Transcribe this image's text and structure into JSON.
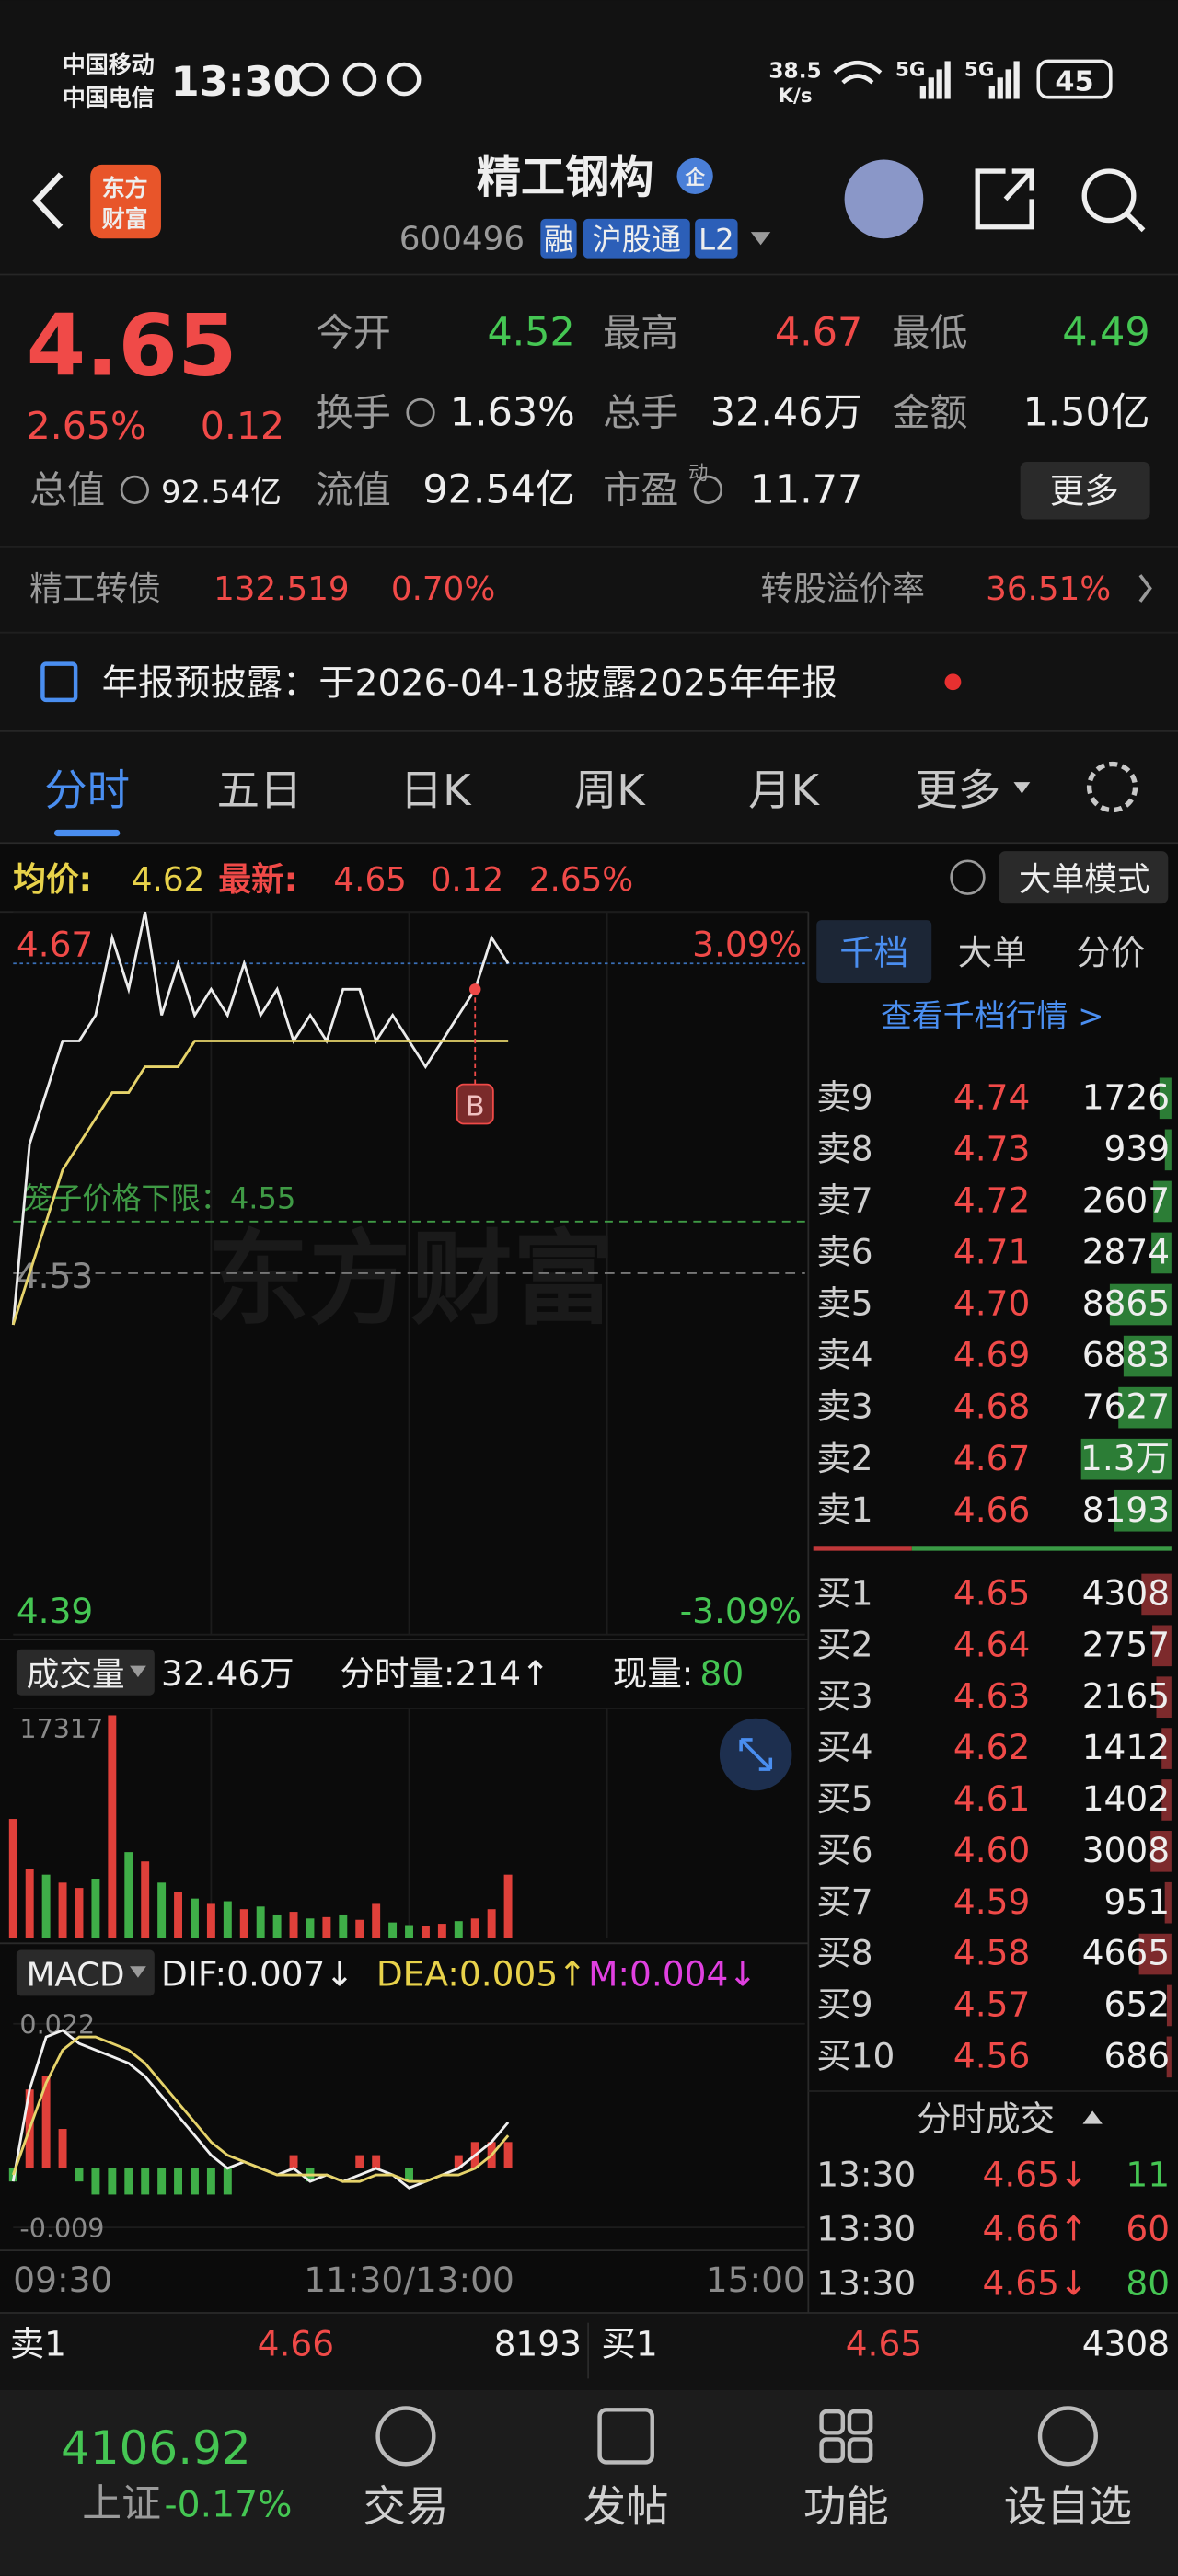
{
  "status_bar": {
    "carriers": [
      "中国移动",
      "中国电信"
    ],
    "time": "13:30",
    "net_speed": [
      "38.5",
      "K/s"
    ],
    "signals": [
      "5G",
      "5G"
    ],
    "battery": "45"
  },
  "header": {
    "logo": [
      "东方",
      "财富"
    ],
    "title": "精工钢构",
    "title_badge": "企",
    "code": "600496",
    "tags": [
      "融",
      "沪股通",
      "L2"
    ]
  },
  "quote": {
    "price": "4.65",
    "change_pct": "2.65%",
    "change": "0.12",
    "fields": [
      {
        "label": "今开",
        "value": "4.52",
        "tone": "down"
      },
      {
        "label": "最高",
        "value": "4.67",
        "tone": "up"
      },
      {
        "label": "最低",
        "value": "4.49",
        "tone": "down"
      },
      {
        "label": "换手",
        "value": "1.63%"
      },
      {
        "label": "总手",
        "value": "32.46万"
      },
      {
        "label": "金额",
        "value": "1.50亿"
      },
      {
        "label": "总值",
        "value": "92.54亿"
      },
      {
        "label": "流值",
        "value": "92.54亿"
      },
      {
        "label": "市盈",
        "sup": "动",
        "value": "11.77"
      }
    ],
    "more_button": "更多"
  },
  "bond": {
    "label": "精工转债",
    "price": "132.519",
    "change": "0.70%",
    "premium_label": "转股溢价率",
    "premium": "36.51%"
  },
  "notice": "年报预披露：于2026-04-18披露2025年年报",
  "tabs": {
    "items": [
      "分时",
      "五日",
      "日K",
      "周K",
      "月K",
      "更多"
    ],
    "active": 0
  },
  "summary": {
    "avg_label": "均价:",
    "avg": "4.62",
    "last_label": "最新:",
    "last": "4.65",
    "change": "0.12",
    "change_pct": "2.65%",
    "mode_button": "大单模式"
  },
  "chart_data": [
    {
      "type": "line",
      "xlim": [
        0,
        240
      ],
      "ylim": [
        4.39,
        4.67
      ],
      "yticks": [
        4.39,
        4.53,
        4.67
      ],
      "y2lim": [
        -3.09,
        3.09
      ],
      "y2ticks": [
        {
          "value": -3.09,
          "label": "-3.09%"
        },
        {
          "value": 3.09,
          "label": "3.09%"
        }
      ],
      "x": [
        0,
        5,
        10,
        15,
        20,
        25,
        30,
        35,
        40,
        45,
        50,
        55,
        60,
        65,
        70,
        75,
        80,
        85,
        90,
        95,
        100,
        105,
        110,
        115,
        120,
        125,
        130,
        135,
        140,
        145,
        150
      ],
      "series": [
        {
          "color": "#ececec",
          "values": [
            4.51,
            4.58,
            4.6,
            4.62,
            4.62,
            4.63,
            4.66,
            4.64,
            4.67,
            4.63,
            4.65,
            4.63,
            4.64,
            4.63,
            4.65,
            4.63,
            4.64,
            4.62,
            4.63,
            4.62,
            4.64,
            4.64,
            4.62,
            4.63,
            4.62,
            4.61,
            4.62,
            4.63,
            4.64,
            4.66,
            4.65
          ]
        },
        {
          "color": "#e6d36a",
          "values": [
            4.51,
            4.53,
            4.55,
            4.57,
            4.58,
            4.59,
            4.6,
            4.6,
            4.61,
            4.61,
            4.61,
            4.62,
            4.62,
            4.62,
            4.62,
            4.62,
            4.62,
            4.62,
            4.62,
            4.62,
            4.62,
            4.62,
            4.62,
            4.62,
            4.62,
            4.62,
            4.62,
            4.62,
            4.62,
            4.62,
            4.62
          ]
        }
      ],
      "reference_lines": [
        {
          "label": "笼子价格下限：4.55",
          "value": 4.55,
          "color": "#3f9a45"
        },
        {
          "value": 4.65,
          "color": "#3a6fb8"
        }
      ],
      "marker": {
        "label": "B",
        "x": 140,
        "value": 4.64
      },
      "watermark": "东方财富"
    },
    {
      "type": "bar",
      "label": "成交量",
      "total": "32.46万",
      "tick_volume": "分时量:214↑",
      "current_label": "现量:",
      "current": "80",
      "xlim": [
        0,
        240
      ],
      "ylim": [
        0,
        17317
      ],
      "yticks": [
        17317
      ],
      "x": [
        0,
        5,
        10,
        15,
        20,
        25,
        30,
        35,
        40,
        45,
        50,
        55,
        60,
        65,
        70,
        75,
        80,
        85,
        90,
        95,
        100,
        105,
        110,
        115,
        120,
        125,
        130,
        135,
        140,
        145,
        150
      ],
      "values": [
        9000,
        5200,
        4800,
        4200,
        3800,
        4500,
        16800,
        6500,
        5800,
        4200,
        3500,
        3000,
        2600,
        2800,
        2200,
        2400,
        1800,
        2000,
        1500,
        1600,
        1800,
        1400,
        2600,
        1200,
        1000,
        900,
        1100,
        1300,
        1500,
        2200,
        4800
      ],
      "up": [
        true,
        true,
        false,
        true,
        true,
        false,
        true,
        false,
        true,
        false,
        true,
        false,
        true,
        false,
        true,
        false,
        false,
        true,
        false,
        true,
        false,
        true,
        true,
        false,
        false,
        true,
        true,
        false,
        true,
        true,
        true
      ],
      "up_color": "#e0403a",
      "down_color": "#3fae48"
    },
    {
      "type": "macd",
      "label": "MACD",
      "dif_label": "DIF:0.007↓",
      "dea_label": "DEA:0.005↑",
      "m_label": "M:0.004↓",
      "xlim": [
        0,
        240
      ],
      "ylim": [
        -0.012,
        0.025
      ],
      "yticks": [
        -0.009,
        0.022
      ],
      "xticks": [
        {
          "value": 0,
          "label": "09:30"
        },
        {
          "value": 120,
          "label": "11:30/13:00"
        },
        {
          "value": 240,
          "label": "15:00"
        }
      ],
      "x": [
        0,
        5,
        10,
        15,
        20,
        25,
        30,
        35,
        40,
        45,
        50,
        55,
        60,
        65,
        70,
        75,
        80,
        85,
        90,
        95,
        100,
        105,
        110,
        115,
        120,
        125,
        130,
        135,
        140,
        145,
        150
      ],
      "dif": {
        "color": "#f0f0f0",
        "values": [
          -0.002,
          0.012,
          0.02,
          0.021,
          0.019,
          0.018,
          0.017,
          0.016,
          0.014,
          0.011,
          0.008,
          0.005,
          0.002,
          0,
          0.001,
          0,
          -0.001,
          0,
          -0.002,
          -0.001,
          -0.002,
          -0.001,
          0,
          -0.001,
          -0.003,
          -0.002,
          -0.001,
          0,
          0.002,
          0.004,
          0.007
        ]
      },
      "dea": {
        "color": "#e6d36a",
        "values": [
          -0.001,
          0.006,
          0.013,
          0.018,
          0.02,
          0.02,
          0.019,
          0.018,
          0.016,
          0.013,
          0.01,
          0.007,
          0.004,
          0.002,
          0.001,
          0,
          -0.001,
          -0.001,
          -0.001,
          -0.001,
          -0.002,
          -0.002,
          -0.001,
          -0.001,
          -0.002,
          -0.002,
          -0.001,
          -0.001,
          0,
          0.002,
          0.005
        ]
      },
      "m": {
        "values": [
          -0.002,
          0.012,
          0.014,
          0.006,
          -0.002,
          -0.004,
          -0.004,
          -0.004,
          -0.004,
          -0.004,
          -0.004,
          -0.004,
          -0.004,
          -0.004,
          0,
          0,
          0,
          0.002,
          -0.002,
          0,
          0,
          0.002,
          0.002,
          0,
          -0.002,
          0,
          0,
          0.002,
          0.004,
          0.004,
          0.004
        ]
      },
      "up_color": "#e0403a",
      "down_color": "#3fae48"
    }
  ],
  "order_book": {
    "tabs": [
      "千档",
      "大单",
      "分价"
    ],
    "active": 0,
    "link": "查看千档行情 >",
    "asks": [
      {
        "label": "卖9",
        "price": "4.74",
        "volume": 1726
      },
      {
        "label": "卖8",
        "price": "4.73",
        "volume": 939
      },
      {
        "label": "卖7",
        "price": "4.72",
        "volume": 2607
      },
      {
        "label": "卖6",
        "price": "4.71",
        "volume": 2874
      },
      {
        "label": "卖5",
        "price": "4.70",
        "volume": 8865
      },
      {
        "label": "卖4",
        "price": "4.69",
        "volume": 6883
      },
      {
        "label": "卖3",
        "price": "4.68",
        "volume": 7627
      },
      {
        "label": "卖2",
        "price": "4.67",
        "volume": 13000,
        "volume_label": "1.3万"
      },
      {
        "label": "卖1",
        "price": "4.66",
        "volume": 8193
      }
    ],
    "bids": [
      {
        "label": "买1",
        "price": "4.65",
        "volume": 4308
      },
      {
        "label": "买2",
        "price": "4.64",
        "volume": 2757
      },
      {
        "label": "买3",
        "price": "4.63",
        "volume": 2165
      },
      {
        "label": "买4",
        "price": "4.62",
        "volume": 1412
      },
      {
        "label": "买5",
        "price": "4.61",
        "volume": 1402
      },
      {
        "label": "买6",
        "price": "4.60",
        "volume": 3008
      },
      {
        "label": "买7",
        "price": "4.59",
        "volume": 951
      },
      {
        "label": "买8",
        "price": "4.58",
        "volume": 4665
      },
      {
        "label": "买9",
        "price": "4.57",
        "volume": 652
      },
      {
        "label": "买10",
        "price": "4.56",
        "volume": 686
      }
    ]
  },
  "trades": {
    "title": "分时成交",
    "rows": [
      {
        "time": "13:30",
        "price": "4.65↓",
        "volume": "11",
        "tone": "down"
      },
      {
        "time": "13:30",
        "price": "4.66↑",
        "volume": "60",
        "tone": "up"
      },
      {
        "time": "13:30",
        "price": "4.65↓",
        "volume": "80",
        "tone": "down"
      }
    ]
  },
  "ticker": {
    "ask": {
      "label": "卖1",
      "price": "4.66",
      "volume": "8193"
    },
    "bid": {
      "label": "买1",
      "price": "4.65",
      "volume": "4308"
    }
  },
  "bottom_nav": {
    "index_value": "4106.92",
    "index_name": "上证",
    "index_change": "-0.17%",
    "items": [
      "交易",
      "发帖",
      "功能",
      "设自选"
    ]
  }
}
